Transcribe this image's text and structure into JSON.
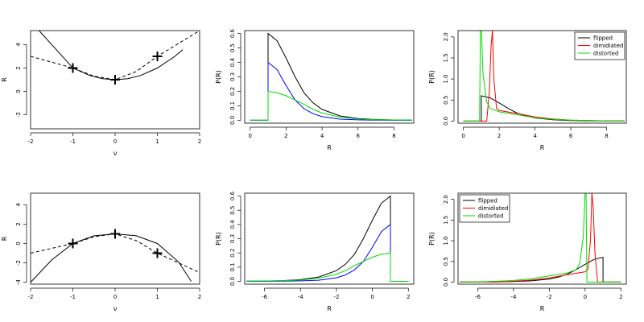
{
  "chart_data": [
    {
      "type": "line",
      "xlabel": "ν",
      "ylabel": "R",
      "xlim": [
        -2,
        2
      ],
      "ylim": [
        -3.2,
        5.2
      ],
      "xticks": [
        -2,
        -1,
        0,
        1,
        2
      ],
      "yticks": [
        -2,
        0,
        2,
        4
      ],
      "grid": false,
      "series": [
        {
          "style": "solid",
          "x": [
            -1.8,
            -1.4,
            -1.0,
            -0.6,
            -0.3,
            0.0,
            0.3,
            0.6,
            1.0,
            1.4,
            1.6
          ],
          "y": [
            5.2,
            3.6,
            2.0,
            1.36,
            1.09,
            1.0,
            1.09,
            1.36,
            2.0,
            2.96,
            3.56
          ]
        },
        {
          "style": "dashed",
          "x": [
            -2.0,
            -1.0,
            -0.5,
            0.0,
            0.5,
            1.0,
            2.0
          ],
          "y": [
            3.0,
            2.0,
            1.3,
            1.0,
            1.7,
            3.0,
            5.2
          ]
        }
      ],
      "markers": [
        {
          "x": -1,
          "y": 2
        },
        {
          "x": 0,
          "y": 1
        },
        {
          "x": 1,
          "y": 3
        }
      ]
    },
    {
      "type": "line",
      "xlabel": "R",
      "ylabel": "P(R)",
      "xlim": [
        -0.3,
        9.1
      ],
      "ylim": [
        -0.02,
        0.62
      ],
      "xticks": [
        0,
        2,
        4,
        6,
        8
      ],
      "yticks": [
        0.0,
        0.1,
        0.2,
        0.3,
        0.4,
        0.5,
        0.6
      ],
      "grid": false,
      "series": [
        {
          "color": "#000000",
          "x": [
            0.0,
            1.0,
            1.0,
            1.5,
            2.0,
            2.5,
            3.0,
            3.5,
            4.0,
            5.0,
            6.0,
            7.0,
            8.0,
            9.0
          ],
          "y": [
            0,
            0,
            0.6,
            0.55,
            0.43,
            0.3,
            0.19,
            0.12,
            0.075,
            0.03,
            0.012,
            0.005,
            0.002,
            0.001
          ]
        },
        {
          "color": "#0000ff",
          "x": [
            0.0,
            1.0,
            1.0,
            1.5,
            2.0,
            2.5,
            3.0,
            3.5,
            4.0,
            5.0,
            6.0,
            7.0,
            8.0,
            9.0
          ],
          "y": [
            0,
            0,
            0.4,
            0.35,
            0.24,
            0.14,
            0.08,
            0.045,
            0.025,
            0.008,
            0.003,
            0.001,
            0.0,
            0.0
          ]
        },
        {
          "color": "#00dd00",
          "x": [
            0.0,
            1.0,
            1.0,
            1.5,
            2.0,
            2.5,
            3.0,
            3.5,
            4.0,
            5.0,
            6.0,
            7.0,
            8.0,
            9.0
          ],
          "y": [
            0,
            0,
            0.2,
            0.19,
            0.17,
            0.14,
            0.11,
            0.075,
            0.05,
            0.022,
            0.009,
            0.004,
            0.002,
            0.001
          ]
        }
      ]
    },
    {
      "type": "line",
      "xlabel": "R",
      "ylabel": "P(R)",
      "xlim": [
        -0.3,
        9.1
      ],
      "ylim": [
        -0.05,
        2.15
      ],
      "xticks": [
        0,
        2,
        4,
        6,
        8
      ],
      "yticks": [
        0.0,
        0.5,
        1.0,
        1.5,
        2.0
      ],
      "grid": false,
      "legend": {
        "position": "top-right",
        "entries": [
          "flipped",
          "dimidiated",
          "distorted"
        ]
      },
      "series": [
        {
          "name": "flipped",
          "color": "#000000",
          "x": [
            0.0,
            1.0,
            1.0,
            1.5,
            2.0,
            2.5,
            3.0,
            3.5,
            4.0,
            5.0,
            6.0,
            7.0,
            8.0,
            9.0
          ],
          "y": [
            0,
            0,
            0.6,
            0.55,
            0.43,
            0.3,
            0.19,
            0.12,
            0.075,
            0.03,
            0.012,
            0.005,
            0.002,
            0.001
          ]
        },
        {
          "name": "dimidiated",
          "color": "#ff0000",
          "x": [
            0.0,
            1.0,
            1.3,
            1.45,
            1.55,
            1.62,
            1.7,
            1.85,
            2.0,
            3.0,
            4.0,
            5.0,
            6.0,
            8.0,
            9.0
          ],
          "y": [
            0,
            0,
            0,
            0.7,
            1.8,
            2.15,
            1.0,
            0.3,
            0.25,
            0.18,
            0.1,
            0.05,
            0.02,
            0.005,
            0.002
          ]
        },
        {
          "name": "distorted",
          "color": "#00dd00",
          "x": [
            0.0,
            0.9,
            0.95,
            1.0,
            1.1,
            1.3,
            1.5,
            2.0,
            3.0,
            4.0,
            5.0,
            6.0,
            8.0,
            9.0
          ],
          "y": [
            0,
            0,
            2.2,
            2.2,
            1.1,
            0.45,
            0.3,
            0.22,
            0.15,
            0.08,
            0.04,
            0.02,
            0.005,
            0.002
          ]
        }
      ]
    },
    {
      "type": "line",
      "xlabel": "ν",
      "ylabel": "R",
      "xlim": [
        -2,
        2
      ],
      "ylim": [
        -4.2,
        5.2
      ],
      "xticks": [
        -2,
        -1,
        0,
        1,
        2
      ],
      "yticks": [
        -4,
        -2,
        0,
        2,
        4
      ],
      "grid": false,
      "series": [
        {
          "style": "solid",
          "x": [
            -2.0,
            -1.5,
            -1.0,
            -0.5,
            0.0,
            0.5,
            1.0,
            1.5,
            1.8
          ],
          "y": [
            -4.0,
            -1.7,
            0.0,
            0.8,
            1.0,
            0.8,
            0.0,
            -1.9,
            -3.9
          ]
        },
        {
          "style": "dashed",
          "x": [
            -2.0,
            -1.0,
            -0.5,
            0.0,
            0.5,
            1.0,
            2.0
          ],
          "y": [
            -1.0,
            0.0,
            0.7,
            1.0,
            0.3,
            -1.0,
            -3.0
          ]
        }
      ],
      "markers": [
        {
          "x": -1,
          "y": 0
        },
        {
          "x": 0,
          "y": 1
        },
        {
          "x": 1,
          "y": -1
        }
      ]
    },
    {
      "type": "line",
      "xlabel": "R",
      "ylabel": "P(R)",
      "xlim": [
        -7.1,
        2.3
      ],
      "ylim": [
        -0.02,
        0.62
      ],
      "xticks": [
        -6,
        -4,
        -2,
        0,
        2
      ],
      "yticks": [
        0.0,
        0.1,
        0.2,
        0.3,
        0.4,
        0.5,
        0.6
      ],
      "grid": false,
      "series": [
        {
          "color": "#000000",
          "x": [
            -7.0,
            -6.0,
            -5.0,
            -4.0,
            -3.0,
            -2.0,
            -1.5,
            -1.0,
            -0.5,
            0.0,
            0.5,
            1.0,
            1.0,
            2.0
          ],
          "y": [
            0.001,
            0.002,
            0.005,
            0.012,
            0.03,
            0.075,
            0.12,
            0.19,
            0.3,
            0.43,
            0.55,
            0.6,
            0,
            0
          ]
        },
        {
          "color": "#0000ff",
          "x": [
            -7.0,
            -6.0,
            -5.0,
            -4.0,
            -3.0,
            -2.0,
            -1.5,
            -1.0,
            -0.5,
            0.0,
            0.5,
            1.0,
            1.0,
            2.0
          ],
          "y": [
            0,
            0,
            0.001,
            0.003,
            0.008,
            0.025,
            0.045,
            0.08,
            0.14,
            0.24,
            0.35,
            0.4,
            0,
            0
          ]
        },
        {
          "color": "#00dd00",
          "x": [
            -7.0,
            -6.0,
            -5.0,
            -4.0,
            -3.0,
            -2.0,
            -1.5,
            -1.0,
            -0.5,
            0.0,
            0.5,
            1.0,
            1.0,
            2.0
          ],
          "y": [
            0.001,
            0.002,
            0.004,
            0.009,
            0.022,
            0.05,
            0.075,
            0.11,
            0.14,
            0.17,
            0.19,
            0.2,
            0,
            0
          ]
        }
      ]
    },
    {
      "type": "line",
      "xlabel": "R",
      "ylabel": "P(R)",
      "xlim": [
        -7.1,
        2.3
      ],
      "ylim": [
        -0.05,
        2.15
      ],
      "xticks": [
        -6,
        -4,
        -2,
        0,
        2
      ],
      "yticks": [
        0.0,
        0.5,
        1.0,
        1.5,
        2.0
      ],
      "grid": false,
      "legend": {
        "position": "top-left",
        "entries": [
          "flipped",
          "dimidiated",
          "distorted"
        ]
      },
      "series": [
        {
          "name": "flipped",
          "color": "#000000",
          "x": [
            -7.0,
            -6.0,
            -5.0,
            -4.0,
            -3.0,
            -2.0,
            -1.5,
            -1.0,
            -0.5,
            0.0,
            0.5,
            1.0,
            1.0,
            2.0
          ],
          "y": [
            0.001,
            0.002,
            0.005,
            0.012,
            0.03,
            0.075,
            0.12,
            0.19,
            0.3,
            0.43,
            0.55,
            0.6,
            0,
            0
          ]
        },
        {
          "name": "dimidiated",
          "color": "#ff0000",
          "x": [
            -7.0,
            -5.0,
            -4.0,
            -3.0,
            -2.0,
            -1.0,
            0.0,
            0.15,
            0.3,
            0.38,
            0.45,
            0.55,
            0.7,
            1.0,
            2.0
          ],
          "y": [
            0.002,
            0.005,
            0.02,
            0.05,
            0.1,
            0.18,
            0.25,
            0.3,
            1.0,
            2.15,
            1.8,
            0.7,
            0,
            0,
            0
          ]
        },
        {
          "name": "distorted",
          "color": "#00dd00",
          "x": [
            -7.0,
            -6.0,
            -5.0,
            -4.0,
            -3.0,
            -2.0,
            -1.0,
            -0.5,
            -0.3,
            -0.1,
            0.0,
            0.05,
            0.1,
            2.0
          ],
          "y": [
            0.002,
            0.005,
            0.02,
            0.04,
            0.08,
            0.15,
            0.22,
            0.3,
            0.45,
            1.1,
            2.2,
            2.2,
            0,
            0
          ]
        }
      ]
    }
  ]
}
